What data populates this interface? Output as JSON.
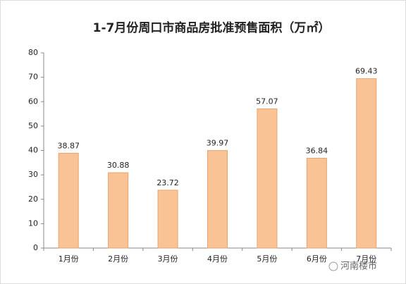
{
  "chart_data": {
    "type": "bar",
    "title": "1-7月份周口市商品房批准预售面积（万㎡）",
    "categories": [
      "1月份",
      "2月份",
      "3月份",
      "4月份",
      "5月份",
      "6月份",
      "7月份"
    ],
    "values": [
      38.87,
      30.88,
      23.72,
      39.97,
      57.07,
      36.84,
      69.43
    ],
    "color": "#f9c396",
    "ylim": [
      0,
      80
    ],
    "yticks": [
      0,
      10,
      20,
      30,
      40,
      50,
      60,
      70,
      80
    ],
    "grid": false
  },
  "watermark": "河南楼市"
}
